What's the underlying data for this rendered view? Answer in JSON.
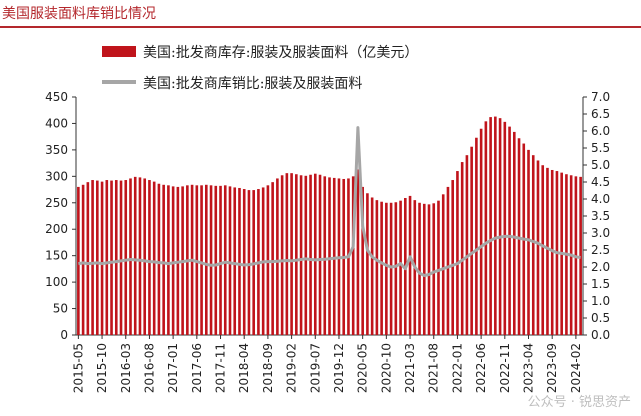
{
  "header": {
    "title": "美国服装面料库销比情况"
  },
  "watermark": "公众号 · 锐思资产",
  "chart_data": {
    "type": "bar",
    "x": [
      "2015-05",
      "2015-06",
      "2015-07",
      "2015-08",
      "2015-09",
      "2015-10",
      "2015-11",
      "2015-12",
      "2016-01",
      "2016-02",
      "2016-03",
      "2016-04",
      "2016-05",
      "2016-06",
      "2016-07",
      "2016-08",
      "2016-09",
      "2016-10",
      "2016-11",
      "2016-12",
      "2017-01",
      "2017-02",
      "2017-03",
      "2017-04",
      "2017-05",
      "2017-06",
      "2017-07",
      "2017-08",
      "2017-09",
      "2017-10",
      "2017-11",
      "2017-12",
      "2018-01",
      "2018-02",
      "2018-03",
      "2018-04",
      "2018-05",
      "2018-06",
      "2018-07",
      "2018-08",
      "2018-09",
      "2018-10",
      "2018-11",
      "2018-12",
      "2019-01",
      "2019-02",
      "2019-03",
      "2019-04",
      "2019-05",
      "2019-06",
      "2019-07",
      "2019-08",
      "2019-09",
      "2019-10",
      "2019-11",
      "2019-12",
      "2020-01",
      "2020-02",
      "2020-03",
      "2020-04",
      "2020-05",
      "2020-06",
      "2020-07",
      "2020-08",
      "2020-09",
      "2020-10",
      "2020-11",
      "2020-12",
      "2021-01",
      "2021-02",
      "2021-03",
      "2021-04",
      "2021-05",
      "2021-06",
      "2021-07",
      "2021-08",
      "2021-09",
      "2021-10",
      "2021-11",
      "2021-12",
      "2022-01",
      "2022-02",
      "2022-03",
      "2022-04",
      "2022-05",
      "2022-06",
      "2022-07",
      "2022-08",
      "2022-09",
      "2022-10",
      "2022-11",
      "2022-12",
      "2023-01",
      "2023-02",
      "2023-03",
      "2023-04",
      "2023-05",
      "2023-06",
      "2023-07",
      "2023-08",
      "2023-09",
      "2023-10",
      "2023-11",
      "2023-12",
      "2024-01",
      "2024-02",
      "2024-03"
    ],
    "x_tick_labels": [
      "2015-05",
      "2015-10",
      "2016-03",
      "2016-08",
      "2017-01",
      "2017-06",
      "2017-11",
      "2018-04",
      "2018-09",
      "2019-02",
      "2019-07",
      "2019-12",
      "2020-05",
      "2020-10",
      "2021-03",
      "2021-08",
      "2022-01",
      "2022-06",
      "2022-11",
      "2023-04",
      "2023-09",
      "2024-02"
    ],
    "x_tick_every": 5,
    "y_left": {
      "min": 0,
      "max": 450,
      "step": 50
    },
    "y_right": {
      "min": 0.0,
      "max": 7.0,
      "step": 0.5
    },
    "series": [
      {
        "name": "美国:批发商库存:服装及服装面料（亿美元）",
        "type": "bar",
        "axis": "left",
        "color": "#c0141b",
        "values": [
          280,
          284,
          289,
          293,
          292,
          290,
          293,
          292,
          293,
          292,
          293,
          296,
          299,
          298,
          296,
          293,
          290,
          286,
          284,
          283,
          281,
          280,
          281,
          283,
          284,
          283,
          283,
          284,
          283,
          282,
          282,
          283,
          281,
          279,
          278,
          276,
          274,
          274,
          276,
          279,
          283,
          289,
          296,
          302,
          306,
          306,
          304,
          302,
          301,
          303,
          305,
          303,
          300,
          298,
          297,
          296,
          295,
          296,
          300,
          313,
          280,
          268,
          260,
          255,
          252,
          250,
          250,
          251,
          254,
          259,
          263,
          255,
          250,
          248,
          247,
          249,
          254,
          266,
          280,
          293,
          310,
          327,
          340,
          356,
          373,
          390,
          404,
          412,
          413,
          410,
          403,
          394,
          384,
          372,
          362,
          350,
          340,
          330,
          321,
          316,
          312,
          310,
          307,
          304,
          302,
          300,
          299
        ]
      },
      {
        "name": "美国:批发商库销比:服装及服装面料",
        "type": "line",
        "axis": "right",
        "color": "#a6a6a6",
        "values": [
          2.1,
          2.12,
          2.1,
          2.11,
          2.12,
          2.1,
          2.12,
          2.14,
          2.16,
          2.18,
          2.2,
          2.22,
          2.21,
          2.2,
          2.18,
          2.16,
          2.15,
          2.13,
          2.12,
          2.1,
          2.12,
          2.14,
          2.16,
          2.18,
          2.2,
          2.16,
          2.12,
          2.08,
          2.05,
          2.06,
          2.1,
          2.14,
          2.12,
          2.1,
          2.08,
          2.06,
          2.07,
          2.09,
          2.12,
          2.15,
          2.16,
          2.16,
          2.17,
          2.18,
          2.19,
          2.18,
          2.2,
          2.22,
          2.24,
          2.22,
          2.21,
          2.22,
          2.23,
          2.24,
          2.26,
          2.27,
          2.28,
          2.3,
          2.6,
          6.1,
          3.2,
          2.5,
          2.3,
          2.2,
          2.12,
          2.05,
          2.0,
          2.02,
          2.1,
          1.95,
          2.3,
          2.0,
          1.82,
          1.75,
          1.78,
          1.85,
          1.9,
          1.95,
          2.0,
          2.05,
          2.1,
          2.2,
          2.3,
          2.4,
          2.5,
          2.6,
          2.7,
          2.78,
          2.85,
          2.88,
          2.9,
          2.9,
          2.88,
          2.85,
          2.82,
          2.8,
          2.75,
          2.7,
          2.62,
          2.55,
          2.48,
          2.42,
          2.4,
          2.38,
          2.35,
          2.3,
          2.28
        ]
      }
    ]
  }
}
